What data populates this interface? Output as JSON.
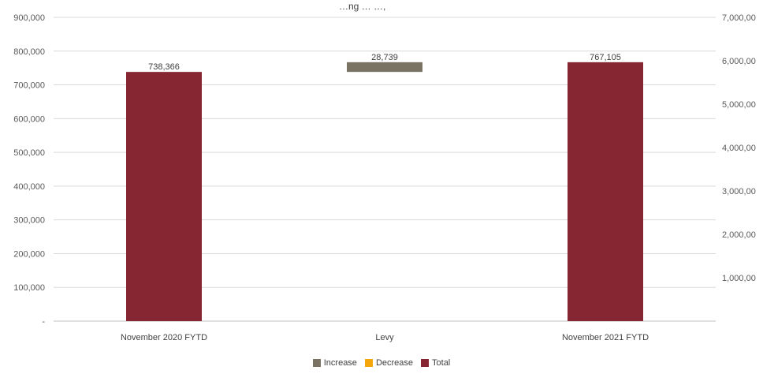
{
  "chart_data": {
    "type": "bar",
    "subtype": "waterfall",
    "title": "…ng … …,",
    "categories": [
      "November 2020 FYTD",
      "Levy",
      "November 2021 FYTD"
    ],
    "bars": [
      {
        "category": "November 2020 FYTD",
        "kind": "Total",
        "start": 0,
        "end": 738366,
        "label": "738,366"
      },
      {
        "category": "Levy",
        "kind": "Increase",
        "start": 738366,
        "end": 767105,
        "label": "28,739"
      },
      {
        "category": "November 2021 FYTD",
        "kind": "Total",
        "start": 0,
        "end": 767105,
        "label": "767,105"
      }
    ],
    "y_left": {
      "min": 0,
      "max": 900000,
      "ticks": [
        0,
        100000,
        200000,
        300000,
        400000,
        500000,
        600000,
        700000,
        800000,
        900000
      ],
      "tick_labels": [
        "-",
        "100,000",
        "200,000",
        "300,000",
        "400,000",
        "500,000",
        "600,000",
        "700,000",
        "800,000",
        "900,000"
      ]
    },
    "y_right": {
      "min": 0,
      "max": 7000000,
      "ticks": [
        1000000,
        2000000,
        3000000,
        4000000,
        5000000,
        6000000,
        7000000
      ],
      "tick_labels": [
        "1,000,00",
        "2,000,00",
        "3,000,00",
        "4,000,00",
        "5,000,00",
        "6,000,00",
        "7,000,00"
      ]
    },
    "grid": true,
    "legend": {
      "position": "bottom",
      "items": [
        {
          "name": "Increase",
          "color": "#7a7263"
        },
        {
          "name": "Decrease",
          "color": "#f5a60a"
        },
        {
          "name": "Total",
          "color": "#862633"
        }
      ]
    },
    "colors": {
      "Increase": "#7a7263",
      "Decrease": "#f5a60a",
      "Total": "#862633",
      "grid": "#d9d9d9"
    }
  }
}
